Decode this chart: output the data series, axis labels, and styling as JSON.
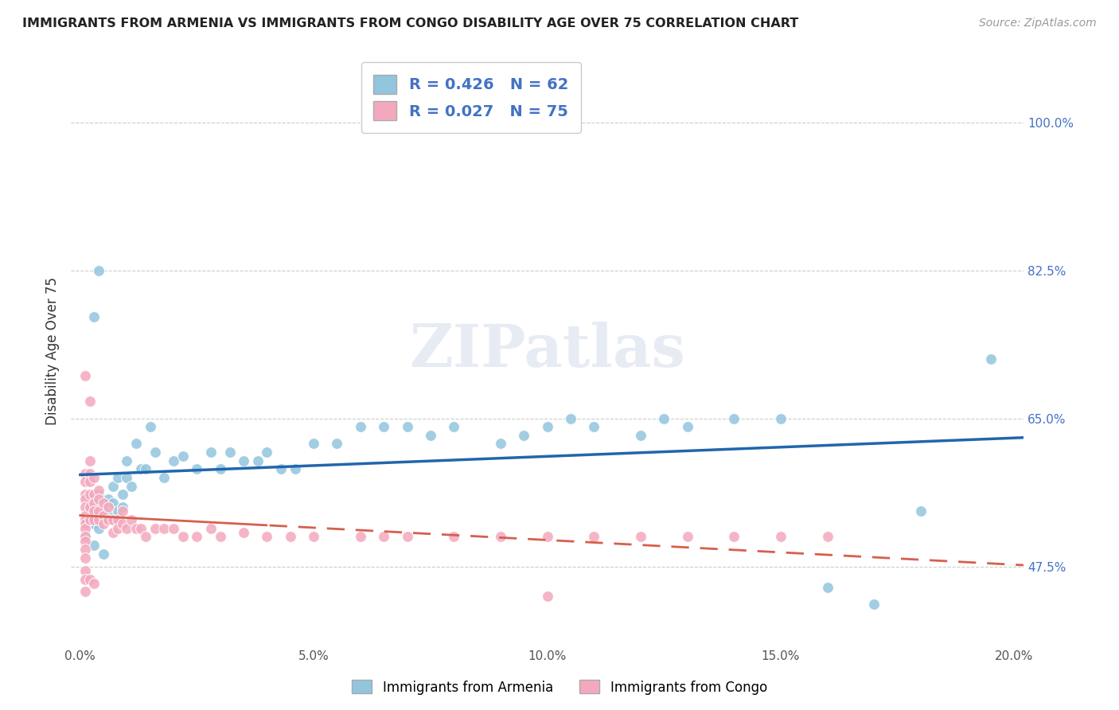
{
  "title": "IMMIGRANTS FROM ARMENIA VS IMMIGRANTS FROM CONGO DISABILITY AGE OVER 75 CORRELATION CHART",
  "source": "Source: ZipAtlas.com",
  "ylabel": "Disability Age Over 75",
  "xlim": [
    -0.002,
    0.202
  ],
  "ylim": [
    0.38,
    1.08
  ],
  "ytick_vals": [
    0.475,
    0.65,
    0.825,
    1.0
  ],
  "xtick_vals": [
    0.0,
    0.05,
    0.1,
    0.15,
    0.2
  ],
  "armenia_color": "#92c5de",
  "congo_color": "#f4a8be",
  "armenia_R": 0.426,
  "armenia_N": 62,
  "congo_R": 0.027,
  "congo_N": 75,
  "trendline_armenia_color": "#2166ac",
  "trendline_congo_color": "#d6604d",
  "legend_label_armenia": "Immigrants from Armenia",
  "legend_label_congo": "Immigrants from Congo",
  "watermark": "ZIPatlas",
  "arm_x": [
    0.001,
    0.001,
    0.002,
    0.002,
    0.003,
    0.003,
    0.003,
    0.004,
    0.004,
    0.005,
    0.005,
    0.006,
    0.006,
    0.007,
    0.007,
    0.008,
    0.008,
    0.009,
    0.009,
    0.01,
    0.01,
    0.011,
    0.012,
    0.013,
    0.014,
    0.015,
    0.016,
    0.018,
    0.02,
    0.022,
    0.025,
    0.028,
    0.03,
    0.032,
    0.035,
    0.038,
    0.04,
    0.043,
    0.046,
    0.05,
    0.055,
    0.06,
    0.065,
    0.07,
    0.075,
    0.08,
    0.09,
    0.095,
    0.1,
    0.105,
    0.11,
    0.12,
    0.125,
    0.13,
    0.14,
    0.15,
    0.16,
    0.17,
    0.18,
    0.195,
    0.003,
    0.004
  ],
  "arm_y": [
    0.53,
    0.51,
    0.545,
    0.555,
    0.525,
    0.54,
    0.5,
    0.56,
    0.52,
    0.545,
    0.49,
    0.555,
    0.535,
    0.55,
    0.57,
    0.54,
    0.58,
    0.56,
    0.545,
    0.58,
    0.6,
    0.57,
    0.62,
    0.59,
    0.59,
    0.64,
    0.61,
    0.58,
    0.6,
    0.605,
    0.59,
    0.61,
    0.59,
    0.61,
    0.6,
    0.6,
    0.61,
    0.59,
    0.59,
    0.62,
    0.62,
    0.64,
    0.64,
    0.64,
    0.63,
    0.64,
    0.62,
    0.63,
    0.64,
    0.65,
    0.64,
    0.63,
    0.65,
    0.64,
    0.65,
    0.65,
    0.45,
    0.43,
    0.54,
    0.72,
    0.77,
    0.825
  ],
  "con_x": [
    0.001,
    0.001,
    0.001,
    0.001,
    0.001,
    0.001,
    0.001,
    0.001,
    0.001,
    0.001,
    0.001,
    0.001,
    0.001,
    0.001,
    0.001,
    0.002,
    0.002,
    0.002,
    0.002,
    0.002,
    0.002,
    0.002,
    0.003,
    0.003,
    0.003,
    0.003,
    0.003,
    0.004,
    0.004,
    0.004,
    0.004,
    0.005,
    0.005,
    0.005,
    0.006,
    0.006,
    0.007,
    0.007,
    0.008,
    0.008,
    0.009,
    0.009,
    0.01,
    0.011,
    0.012,
    0.013,
    0.014,
    0.016,
    0.018,
    0.02,
    0.022,
    0.025,
    0.028,
    0.03,
    0.035,
    0.04,
    0.045,
    0.05,
    0.06,
    0.065,
    0.07,
    0.08,
    0.09,
    0.1,
    0.11,
    0.12,
    0.13,
    0.14,
    0.15,
    0.16,
    0.001,
    0.002,
    0.003,
    0.001,
    0.1
  ],
  "con_y": [
    0.7,
    0.585,
    0.575,
    0.56,
    0.555,
    0.545,
    0.535,
    0.53,
    0.525,
    0.52,
    0.51,
    0.505,
    0.495,
    0.485,
    0.47,
    0.67,
    0.6,
    0.585,
    0.575,
    0.56,
    0.545,
    0.53,
    0.58,
    0.56,
    0.55,
    0.54,
    0.53,
    0.565,
    0.555,
    0.54,
    0.53,
    0.55,
    0.535,
    0.525,
    0.545,
    0.53,
    0.53,
    0.515,
    0.53,
    0.52,
    0.54,
    0.525,
    0.52,
    0.53,
    0.52,
    0.52,
    0.51,
    0.52,
    0.52,
    0.52,
    0.51,
    0.51,
    0.52,
    0.51,
    0.515,
    0.51,
    0.51,
    0.51,
    0.51,
    0.51,
    0.51,
    0.51,
    0.51,
    0.51,
    0.51,
    0.51,
    0.51,
    0.51,
    0.51,
    0.51,
    0.46,
    0.46,
    0.455,
    0.445,
    0.44
  ]
}
